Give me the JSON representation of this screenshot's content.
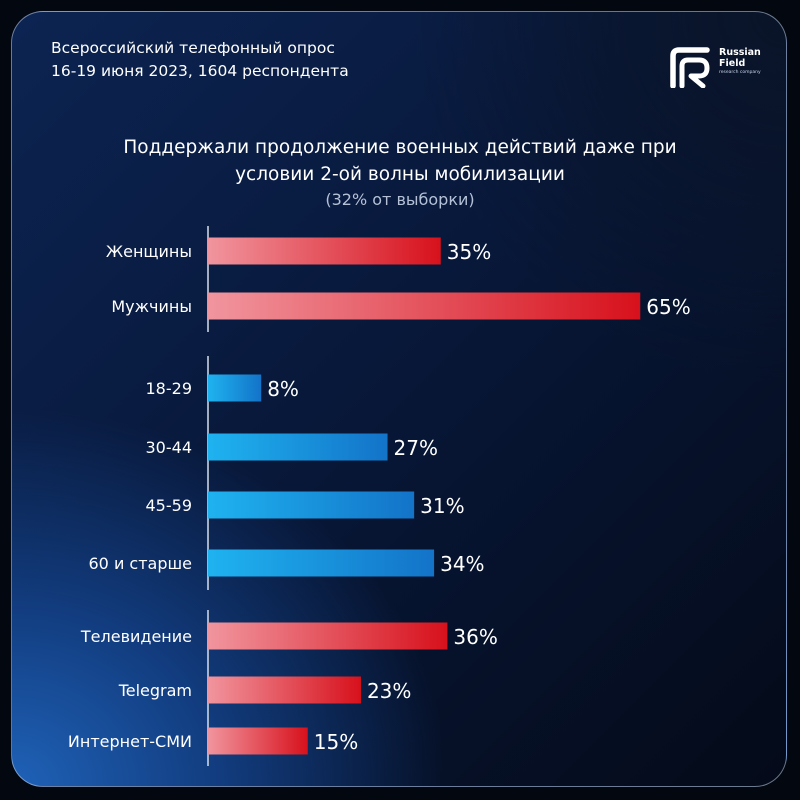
{
  "header": {
    "survey_line1": "Всероссийский телефонный опрос",
    "survey_line2": "16-19 июня 2023, 1604 респондента",
    "logo_line1": "Russian",
    "logo_line2": "Field",
    "logo_sub": "research company"
  },
  "colors": {
    "red_dark": "#d7111c",
    "red_light": "#f1959e",
    "blue_dark": "#1373c8",
    "blue_light": "#1fb3f0"
  },
  "chart_data": {
    "type": "bar",
    "orientation": "horizontal",
    "title_line1": "Поддержали продолжение военных действий даже при",
    "title_line2": "условии 2-ой волны мобилизации",
    "subtitle": "(32% от выборки)",
    "xlim": [
      0,
      100
    ],
    "grid": false,
    "groups": [
      {
        "color": "red",
        "categories": [
          "Женщины",
          "Мужчины"
        ],
        "values": [
          35,
          65
        ],
        "labels": [
          "35%",
          "65%"
        ]
      },
      {
        "color": "blue",
        "categories": [
          "18-29",
          "30-44",
          "45-59",
          "60 и старше"
        ],
        "values": [
          8,
          27,
          31,
          34
        ],
        "labels": [
          "8%",
          "27%",
          "31%",
          "34%"
        ]
      },
      {
        "color": "red",
        "categories": [
          "Телевидение",
          "Telegram",
          "Интернет-СМИ"
        ],
        "values": [
          36,
          23,
          15
        ],
        "labels": [
          "36%",
          "23%",
          "15%"
        ]
      }
    ]
  }
}
